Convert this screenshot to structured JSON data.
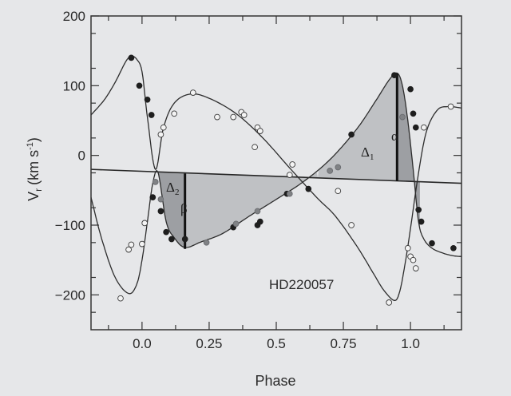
{
  "chart_data": {
    "type": "scatter",
    "title": "",
    "xlabel": "Phase",
    "ylabel_main": "V",
    "ylabel_sub": "r",
    "ylabel_units": "(km s",
    "ylabel_exp": "-1",
    "ylabel_close": ")",
    "xlim": [
      -0.19,
      1.19
    ],
    "ylim": [
      -250,
      200
    ],
    "x_ticks": [
      {
        "value": 0.0,
        "label": "0.0"
      },
      {
        "value": 0.25,
        "label": "0.25"
      },
      {
        "value": 0.5,
        "label": "0.5"
      },
      {
        "value": 0.75,
        "label": "0.75"
      },
      {
        "value": 1.0,
        "label": "1.0"
      }
    ],
    "y_ticks": [
      {
        "value": 200,
        "label": "200"
      },
      {
        "value": 100,
        "label": "100"
      },
      {
        "value": 0,
        "label": "0"
      },
      {
        "value": -100,
        "label": "−100"
      },
      {
        "value": -200,
        "label": "−200"
      }
    ],
    "annotation_text": "HD220057",
    "annotations": {
      "alpha": "α",
      "beta": "β",
      "delta1": "Δ",
      "delta1_sub": "1",
      "delta2": "Δ",
      "delta2_sub": "2"
    },
    "grid": false,
    "reference_lines": [
      {
        "x": [
          -0.19,
          1.19
        ],
        "y": [
          -20,
          -40
        ]
      }
    ],
    "markers": [
      {
        "name": "alpha",
        "x": 0.95,
        "y_from": -37,
        "y_to": 118
      },
      {
        "name": "beta",
        "x": 0.16,
        "y_from": -26,
        "y_to": -134
      }
    ],
    "series": [
      {
        "marker": "filled",
        "x": [
          -0.04,
          -0.01,
          0.02,
          0.035,
          0.04,
          0.07,
          0.09,
          0.11,
          0.16,
          0.34,
          0.43,
          0.44,
          0.54,
          0.62,
          0.78,
          0.94,
          1.0,
          1.01,
          1.02,
          1.03,
          1.04,
          1.08,
          1.16
        ],
        "y": [
          140,
          100,
          80,
          58,
          -60,
          -80,
          -110,
          -120,
          -120,
          -103,
          -100,
          -95,
          -55,
          -48,
          30,
          115,
          95,
          60,
          40,
          -78,
          -95,
          -126,
          -133
        ]
      },
      {
        "marker": "open",
        "x": [
          -0.08,
          -0.05,
          -0.04,
          0.0,
          0.01,
          0.07,
          0.08,
          0.12,
          0.19,
          0.28,
          0.34,
          0.37,
          0.38,
          0.42,
          0.43,
          0.44,
          0.55,
          0.56,
          0.73,
          0.78,
          0.92,
          0.99,
          1.0,
          1.01,
          1.02,
          1.05,
          1.15
        ],
        "y": [
          -205,
          -135,
          -128,
          -127,
          -97,
          30,
          40,
          60,
          90,
          55,
          55,
          62,
          58,
          12,
          40,
          35,
          -28,
          -13,
          -51,
          -100,
          -211,
          -133,
          -145,
          -150,
          -162,
          40,
          70
        ]
      },
      {
        "marker": "grey",
        "x": [
          0.05,
          0.07,
          0.24,
          0.35,
          0.43,
          0.55,
          0.7,
          0.73,
          0.97
        ],
        "y": [
          -38,
          -63,
          -125,
          -98,
          -80,
          -55,
          -22,
          -17,
          55
        ]
      }
    ],
    "curves": [
      {
        "x": [
          -0.19,
          -0.15,
          -0.1,
          -0.05,
          -0.02,
          0.0,
          0.02,
          0.04,
          0.06,
          0.09,
          0.12,
          0.16,
          0.22,
          0.3,
          0.4,
          0.5,
          0.6,
          0.7,
          0.8,
          0.87,
          0.92,
          0.95,
          0.97,
          0.99,
          1.01,
          1.03,
          1.05,
          1.08,
          1.12,
          1.16,
          1.19
        ],
        "y": [
          -60,
          -120,
          -175,
          -198,
          -185,
          -150,
          -95,
          -40,
          -25,
          -95,
          -118,
          -132,
          -124,
          -112,
          -87,
          -63,
          -38,
          -6,
          38,
          78,
          108,
          118,
          100,
          50,
          -20,
          -95,
          -120,
          -133,
          -140,
          -144,
          -145
        ]
      },
      {
        "x": [
          -0.19,
          -0.14,
          -0.1,
          -0.06,
          -0.04,
          -0.02,
          0.0,
          0.02,
          0.05,
          0.08,
          0.12,
          0.18,
          0.25,
          0.35,
          0.45,
          0.55,
          0.65,
          0.72,
          0.8,
          0.86,
          0.9,
          0.94,
          0.96,
          0.98,
          1.0,
          1.03,
          1.06,
          1.1,
          1.14,
          1.19
        ],
        "y": [
          58,
          80,
          105,
          135,
          142,
          138,
          120,
          55,
          -20,
          40,
          75,
          88,
          82,
          60,
          25,
          -18,
          -60,
          -87,
          -130,
          -168,
          -193,
          -208,
          -195,
          -155,
          -105,
          -25,
          35,
          65,
          70,
          68
        ]
      }
    ]
  }
}
